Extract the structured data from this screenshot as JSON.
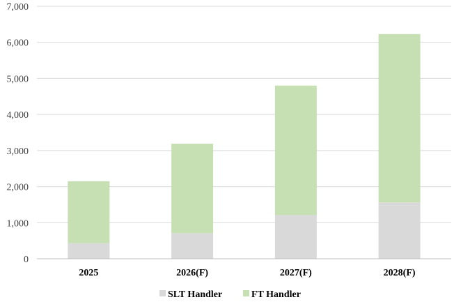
{
  "chart_data": {
    "type": "bar",
    "stacked": true,
    "categories": [
      "2025",
      "2026(F)",
      "2027(F)",
      "2028(F)"
    ],
    "series": [
      {
        "name": "SLT Handler",
        "color": "#d9d9d9",
        "values": [
          430,
          710,
          1210,
          1560
        ]
      },
      {
        "name": "FT Handler",
        "color": "#c6e0b4",
        "values": [
          1720,
          2480,
          3590,
          4670
        ]
      }
    ],
    "ylim": [
      0,
      7000
    ],
    "yticks": [
      "0",
      "1,000",
      "2,000",
      "3,000",
      "4,000",
      "5,000",
      "6,000",
      "7,000"
    ],
    "grid": true,
    "legend_position": "bottom"
  }
}
